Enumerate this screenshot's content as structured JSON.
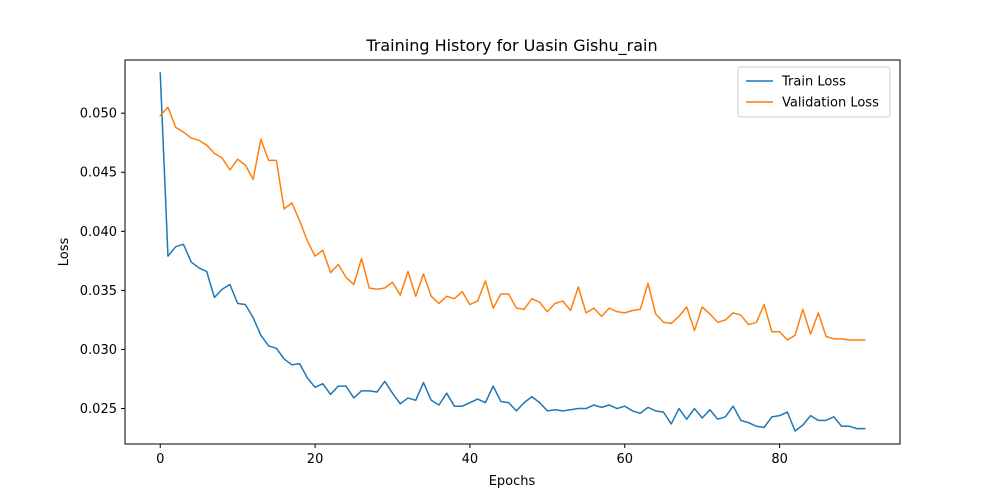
{
  "chart_data": {
    "type": "line",
    "title": "Training History for Uasin Gishu_rain",
    "xlabel": "Epochs",
    "ylabel": "Loss",
    "xlim": [
      -4.55,
      95.55
    ],
    "ylim": [
      0.022,
      0.0545
    ],
    "xticks": [
      0,
      20,
      40,
      60,
      80
    ],
    "yticks": [
      0.025,
      0.03,
      0.035,
      0.04,
      0.045,
      0.05
    ],
    "ytick_labels": [
      "0.025",
      "0.030",
      "0.035",
      "0.040",
      "0.045",
      "0.050"
    ],
    "grid": false,
    "legend_position": "top-right",
    "series": [
      {
        "name": "Train Loss",
        "color": "#1f77b4",
        "values": [
          0.0534,
          0.0379,
          0.0387,
          0.0389,
          0.0374,
          0.0369,
          0.0366,
          0.0344,
          0.0351,
          0.0355,
          0.0339,
          0.0338,
          0.0327,
          0.0312,
          0.0303,
          0.0301,
          0.0292,
          0.0287,
          0.0288,
          0.0276,
          0.0268,
          0.0271,
          0.0262,
          0.0269,
          0.0269,
          0.0259,
          0.0265,
          0.0265,
          0.0264,
          0.0273,
          0.0263,
          0.0254,
          0.0259,
          0.0257,
          0.0272,
          0.0257,
          0.0253,
          0.0263,
          0.0252,
          0.0252,
          0.0255,
          0.0258,
          0.0255,
          0.0269,
          0.0256,
          0.0255,
          0.0248,
          0.0255,
          0.026,
          0.0255,
          0.0248,
          0.0249,
          0.0248,
          0.0249,
          0.025,
          0.025,
          0.0253,
          0.0251,
          0.0253,
          0.025,
          0.0252,
          0.0248,
          0.0246,
          0.0251,
          0.0248,
          0.0247,
          0.0237,
          0.025,
          0.0241,
          0.025,
          0.0242,
          0.0249,
          0.0241,
          0.0243,
          0.0252,
          0.024,
          0.0238,
          0.0235,
          0.0234,
          0.0243,
          0.0244,
          0.0247,
          0.0231,
          0.0236,
          0.0244,
          0.024,
          0.024,
          0.0243,
          0.0235,
          0.0235,
          0.0233,
          0.0233
        ]
      },
      {
        "name": "Validation Loss",
        "color": "#ff7f0e",
        "values": [
          0.0498,
          0.0505,
          0.0488,
          0.0484,
          0.0479,
          0.0477,
          0.0473,
          0.0466,
          0.0462,
          0.0452,
          0.0461,
          0.0456,
          0.0444,
          0.0478,
          0.046,
          0.046,
          0.0419,
          0.0424,
          0.0409,
          0.0392,
          0.0379,
          0.0384,
          0.0365,
          0.0372,
          0.0361,
          0.0355,
          0.0377,
          0.0352,
          0.0351,
          0.0352,
          0.0357,
          0.0346,
          0.0366,
          0.0345,
          0.0364,
          0.0345,
          0.0339,
          0.0345,
          0.0343,
          0.0349,
          0.0338,
          0.0341,
          0.0358,
          0.0335,
          0.0347,
          0.0347,
          0.0335,
          0.0334,
          0.0343,
          0.034,
          0.0332,
          0.0339,
          0.0341,
          0.0333,
          0.0353,
          0.0331,
          0.0335,
          0.0328,
          0.0335,
          0.0332,
          0.0331,
          0.0333,
          0.0334,
          0.0356,
          0.033,
          0.0323,
          0.0322,
          0.0328,
          0.0336,
          0.0316,
          0.0336,
          0.033,
          0.0323,
          0.0325,
          0.0331,
          0.0329,
          0.0321,
          0.0323,
          0.0338,
          0.0315,
          0.0315,
          0.0308,
          0.0312,
          0.0334,
          0.0313,
          0.0331,
          0.0311,
          0.0309,
          0.0309,
          0.0308,
          0.0308,
          0.0308
        ]
      }
    ]
  }
}
